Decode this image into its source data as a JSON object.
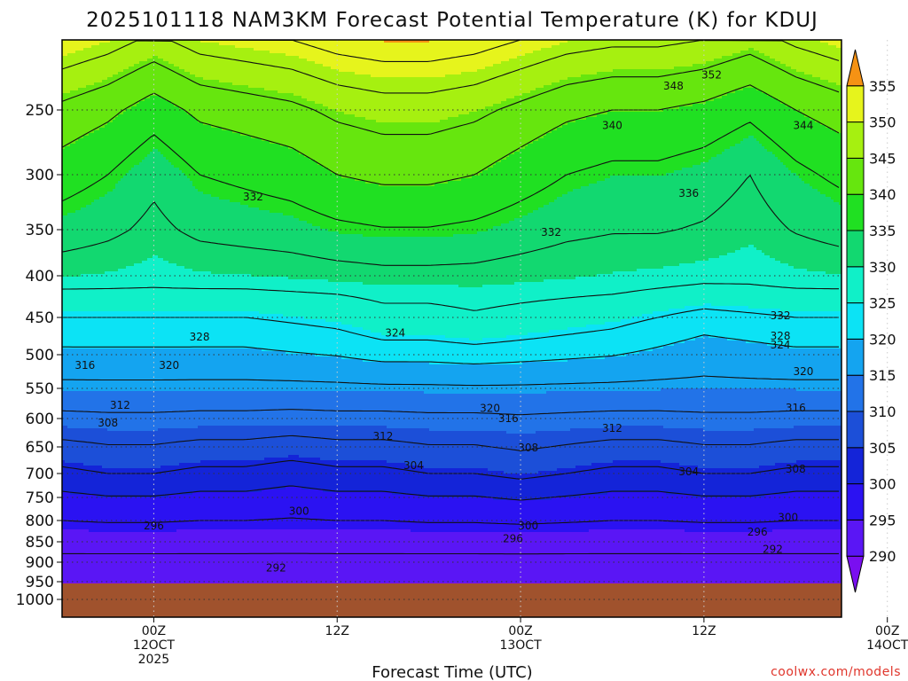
{
  "chart_data": {
    "type": "heatmap",
    "title": "2025101118 NAM3KM Forecast Potential Temperature (K) for KDUJ",
    "xlabel": "Forecast Time (UTC)",
    "ylabel": "",
    "y_ticks": [
      250,
      300,
      350,
      400,
      450,
      500,
      550,
      600,
      650,
      700,
      750,
      800,
      850,
      900,
      950,
      1000
    ],
    "y_tick_labels": [
      "250",
      "300",
      "350",
      "400",
      "450",
      "500",
      "550",
      "600",
      "650",
      "700",
      "750",
      "800",
      "850",
      "900",
      "950",
      "1000"
    ],
    "ylim": [
      1000,
      200
    ],
    "x_range_hours": [
      -6,
      45
    ],
    "x_ticks": [
      {
        "hour": 0,
        "lines": [
          "00Z",
          "12OCT",
          "2025"
        ]
      },
      {
        "hour": 12,
        "lines": [
          "12Z"
        ]
      },
      {
        "hour": 24,
        "lines": [
          "00Z",
          "13OCT"
        ]
      },
      {
        "hour": 36,
        "lines": [
          "12Z"
        ]
      },
      {
        "hour": 48,
        "lines": [
          "00Z",
          "14OCT"
        ]
      }
    ],
    "colorbar": {
      "levels": [
        290,
        295,
        300,
        305,
        310,
        315,
        320,
        325,
        330,
        335,
        340,
        345,
        350,
        355
      ],
      "labels": [
        "290",
        "295",
        "300",
        "305",
        "310",
        "315",
        "320",
        "325",
        "330",
        "335",
        "340",
        "345",
        "350",
        "355"
      ],
      "colors": [
        "#7a0ff0",
        "#5a16f5",
        "#2b12f2",
        "#1424d8",
        "#1c4fd8",
        "#2273e8",
        "#14a4f0",
        "#0ce3f5",
        "#10f0c8",
        "#12d870",
        "#20e022",
        "#66e60e",
        "#a6f010",
        "#e6f41c",
        "#ffe014",
        "#ffbf10",
        "#f59214"
      ]
    },
    "surface": {
      "top_pressure": 955,
      "color": "#a0522d"
    },
    "contour_labels": [
      {
        "text": "352",
        "hour": 36.5,
        "p": 225
      },
      {
        "text": "348",
        "hour": 34.0,
        "p": 233
      },
      {
        "text": "344",
        "hour": 42.5,
        "p": 262
      },
      {
        "text": "340",
        "hour": 30.0,
        "p": 262
      },
      {
        "text": "336",
        "hour": 35.0,
        "p": 317
      },
      {
        "text": "332",
        "hour": 6.5,
        "p": 320
      },
      {
        "text": "332",
        "hour": 26.0,
        "p": 353
      },
      {
        "text": "332",
        "hour": 41.0,
        "p": 448
      },
      {
        "text": "328",
        "hour": 41.0,
        "p": 475
      },
      {
        "text": "324",
        "hour": 41.0,
        "p": 487
      },
      {
        "text": "328",
        "hour": 3.0,
        "p": 476
      },
      {
        "text": "324",
        "hour": 15.8,
        "p": 471
      },
      {
        "text": "320",
        "hour": 1.0,
        "p": 516
      },
      {
        "text": "316",
        "hour": -4.5,
        "p": 516
      },
      {
        "text": "320",
        "hour": 42.5,
        "p": 525
      },
      {
        "text": "320",
        "hour": 22.0,
        "p": 583
      },
      {
        "text": "316",
        "hour": 42.0,
        "p": 582
      },
      {
        "text": "316",
        "hour": 23.2,
        "p": 600
      },
      {
        "text": "312",
        "hour": -2.2,
        "p": 578
      },
      {
        "text": "312",
        "hour": 30.0,
        "p": 617
      },
      {
        "text": "312",
        "hour": 15.0,
        "p": 631
      },
      {
        "text": "308",
        "hour": -3.0,
        "p": 608
      },
      {
        "text": "308",
        "hour": 24.5,
        "p": 652
      },
      {
        "text": "308",
        "hour": 42.0,
        "p": 692
      },
      {
        "text": "304",
        "hour": 17.0,
        "p": 685
      },
      {
        "text": "304",
        "hour": 35.0,
        "p": 697
      },
      {
        "text": "300",
        "hour": 9.5,
        "p": 780
      },
      {
        "text": "300",
        "hour": 24.5,
        "p": 812
      },
      {
        "text": "300",
        "hour": 41.5,
        "p": 793
      },
      {
        "text": "296",
        "hour": 0.0,
        "p": 813
      },
      {
        "text": "296",
        "hour": 23.5,
        "p": 843
      },
      {
        "text": "296",
        "hour": 39.5,
        "p": 827
      },
      {
        "text": "292",
        "hour": 40.5,
        "p": 868
      },
      {
        "text": "292",
        "hour": 8.0,
        "p": 915
      }
    ]
  },
  "credit": "coolwx.com/models"
}
